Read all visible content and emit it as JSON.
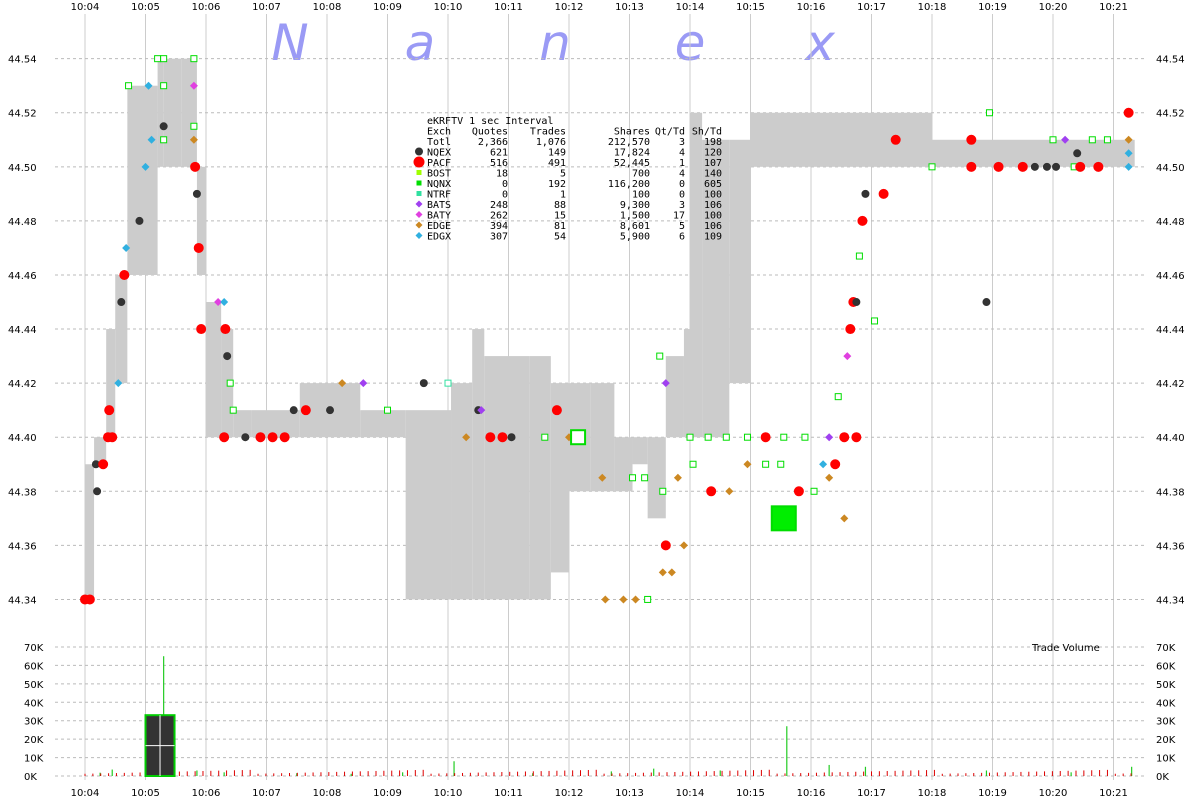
{
  "chart_data": {
    "type": "scatter",
    "brand_letters": [
      "N",
      "a",
      "n",
      "e",
      "x"
    ],
    "time_ticks": [
      "10:04",
      "10:05",
      "10:06",
      "10:07",
      "10:08",
      "10:09",
      "10:10",
      "10:11",
      "10:12",
      "10:13",
      "10:14",
      "10:15",
      "10:16",
      "10:17",
      "10:18",
      "10:19",
      "10:20",
      "10:21"
    ],
    "price_ticks": [
      44.34,
      44.36,
      44.38,
      44.4,
      44.42,
      44.44,
      44.46,
      44.48,
      44.5,
      44.52,
      44.54
    ],
    "price_labels": [
      "44.34",
      "44.36",
      "44.38",
      "44.40",
      "44.42",
      "44.44",
      "44.46",
      "44.48",
      "44.50",
      "44.52",
      "44.54"
    ],
    "ylim": [
      44.325,
      44.558
    ],
    "volume_ticks": [
      0,
      10000,
      20000,
      30000,
      40000,
      50000,
      60000,
      70000
    ],
    "volume_labels": [
      "0K",
      "10K",
      "20K",
      "30K",
      "40K",
      "50K",
      "60K",
      "70K"
    ],
    "volume_ylim": [
      0,
      70000
    ],
    "volume_title": "Trade Volume",
    "legend": {
      "title": "eKRFTV 1 sec Interval",
      "header": [
        "Exch",
        "Quotes",
        "Trades",
        "Shares",
        "Qt/Td",
        "Sh/Td"
      ],
      "rows": [
        {
          "exch": "Totl",
          "quotes": "2,366",
          "trades": "1,076",
          "shares": "212,570",
          "qt_td": "3",
          "sh_td": "198",
          "color": "",
          "marker": "none"
        },
        {
          "exch": "NQEX",
          "quotes": "621",
          "trades": "149",
          "shares": "17,824",
          "qt_td": "4",
          "sh_td": "120",
          "color": "#333333",
          "marker": "circle"
        },
        {
          "exch": "PACF",
          "quotes": "516",
          "trades": "491",
          "shares": "52,445",
          "qt_td": "1",
          "sh_td": "107",
          "color": "#ff0000",
          "marker": "bigcircle"
        },
        {
          "exch": "BOST",
          "quotes": "18",
          "trades": "5",
          "shares": "700",
          "qt_td": "4",
          "sh_td": "140",
          "color": "#a0ff00",
          "marker": "square"
        },
        {
          "exch": "NQNX",
          "quotes": "0",
          "trades": "192",
          "shares": "116,200",
          "qt_td": "0",
          "sh_td": "605",
          "color": "#00dd00",
          "marker": "square"
        },
        {
          "exch": "NTRF",
          "quotes": "0",
          "trades": "1",
          "shares": "100",
          "qt_td": "0",
          "sh_td": "100",
          "color": "#30e0a0",
          "marker": "square"
        },
        {
          "exch": "BATS",
          "quotes": "248",
          "trades": "88",
          "shares": "9,300",
          "qt_td": "3",
          "sh_td": "106",
          "color": "#a040f0",
          "marker": "diamond"
        },
        {
          "exch": "BATY",
          "quotes": "262",
          "trades": "15",
          "shares": "1,500",
          "qt_td": "17",
          "sh_td": "100",
          "color": "#e040e0",
          "marker": "diamond"
        },
        {
          "exch": "EDGE",
          "quotes": "394",
          "trades": "81",
          "shares": "8,601",
          "qt_td": "5",
          "sh_td": "106",
          "color": "#cc8822",
          "marker": "diamond"
        },
        {
          "exch": "EDGX",
          "quotes": "307",
          "trades": "54",
          "shares": "5,900",
          "qt_td": "6",
          "sh_td": "109",
          "color": "#30b0e0",
          "marker": "diamond"
        }
      ]
    },
    "nbbo_band": [
      {
        "t": [
          0.0,
          0.15
        ],
        "low": 44.34,
        "high": 44.39
      },
      {
        "t": [
          0.15,
          0.35
        ],
        "low": 44.39,
        "high": 44.4
      },
      {
        "t": [
          0.35,
          0.5
        ],
        "low": 44.4,
        "high": 44.44
      },
      {
        "t": [
          0.5,
          0.7
        ],
        "low": 44.42,
        "high": 44.46
      },
      {
        "t": [
          0.7,
          1.0
        ],
        "low": 44.46,
        "high": 44.53
      },
      {
        "t": [
          1.0,
          1.2
        ],
        "low": 44.46,
        "high": 44.53
      },
      {
        "t": [
          1.2,
          1.3
        ],
        "low": 44.5,
        "high": 44.54
      },
      {
        "t": [
          1.3,
          1.6
        ],
        "low": 44.5,
        "high": 44.54
      },
      {
        "t": [
          1.6,
          1.85
        ],
        "low": 44.5,
        "high": 44.54
      },
      {
        "t": [
          1.85,
          2.0
        ],
        "low": 44.46,
        "high": 44.5
      },
      {
        "t": [
          2.0,
          2.25
        ],
        "low": 44.4,
        "high": 44.45
      },
      {
        "t": [
          2.25,
          2.45
        ],
        "low": 44.4,
        "high": 44.44
      },
      {
        "t": [
          2.45,
          2.75
        ],
        "low": 44.4,
        "high": 44.41
      },
      {
        "t": [
          2.75,
          3.55
        ],
        "low": 44.4,
        "high": 44.41
      },
      {
        "t": [
          3.55,
          4.55
        ],
        "low": 44.4,
        "high": 44.42
      },
      {
        "t": [
          4.55,
          5.3
        ],
        "low": 44.4,
        "high": 44.41
      },
      {
        "t": [
          5.3,
          6.05
        ],
        "low": 44.34,
        "high": 44.41
      },
      {
        "t": [
          6.05,
          6.4
        ],
        "low": 44.34,
        "high": 44.42
      },
      {
        "t": [
          6.4,
          6.6
        ],
        "low": 44.34,
        "high": 44.44
      },
      {
        "t": [
          6.6,
          7.0
        ],
        "low": 44.34,
        "high": 44.43
      },
      {
        "t": [
          7.0,
          7.35
        ],
        "low": 44.34,
        "high": 44.43
      },
      {
        "t": [
          7.35,
          7.7
        ],
        "low": 44.34,
        "high": 44.43
      },
      {
        "t": [
          7.7,
          8.0
        ],
        "low": 44.35,
        "high": 44.42
      },
      {
        "t": [
          8.0,
          8.35
        ],
        "low": 44.38,
        "high": 44.42
      },
      {
        "t": [
          8.35,
          8.75
        ],
        "low": 44.38,
        "high": 44.42
      },
      {
        "t": [
          8.75,
          9.05
        ],
        "low": 44.38,
        "high": 44.4
      },
      {
        "t": [
          9.05,
          9.3
        ],
        "low": 44.39,
        "high": 44.4
      },
      {
        "t": [
          9.3,
          9.6
        ],
        "low": 44.37,
        "high": 44.4
      },
      {
        "t": [
          9.6,
          9.9
        ],
        "low": 44.4,
        "high": 44.43
      },
      {
        "t": [
          9.9,
          10.0
        ],
        "low": 44.4,
        "high": 44.44
      },
      {
        "t": [
          10.0,
          10.2
        ],
        "low": 44.4,
        "high": 44.52
      },
      {
        "t": [
          10.2,
          10.65
        ],
        "low": 44.4,
        "high": 44.51
      },
      {
        "t": [
          10.65,
          11.0
        ],
        "low": 44.42,
        "high": 44.51
      },
      {
        "t": [
          11.0,
          12.0
        ],
        "low": 44.5,
        "high": 44.52
      },
      {
        "t": [
          12.0,
          13.0
        ],
        "low": 44.5,
        "high": 44.52
      },
      {
        "t": [
          13.0,
          14.0
        ],
        "low": 44.5,
        "high": 44.52
      },
      {
        "t": [
          14.0,
          15.0
        ],
        "low": 44.5,
        "high": 44.51
      },
      {
        "t": [
          15.0,
          16.0
        ],
        "low": 44.5,
        "high": 44.51
      },
      {
        "t": [
          16.0,
          17.35
        ],
        "low": 44.5,
        "high": 44.51
      }
    ],
    "trades": [
      {
        "t": 0.0,
        "p": 44.34,
        "ex": "PACF"
      },
      {
        "t": 0.08,
        "p": 44.34,
        "ex": "PACF"
      },
      {
        "t": 0.18,
        "p": 44.39,
        "ex": "NQEX"
      },
      {
        "t": 0.2,
        "p": 44.38,
        "ex": "NQEX"
      },
      {
        "t": 0.3,
        "p": 44.39,
        "ex": "PACF"
      },
      {
        "t": 0.38,
        "p": 44.4,
        "ex": "PACF"
      },
      {
        "t": 0.4,
        "p": 44.41,
        "ex": "PACF"
      },
      {
        "t": 0.45,
        "p": 44.4,
        "ex": "PACF"
      },
      {
        "t": 0.55,
        "p": 44.42,
        "ex": "EDGX"
      },
      {
        "t": 0.6,
        "p": 44.45,
        "ex": "NQEX"
      },
      {
        "t": 0.65,
        "p": 44.46,
        "ex": "PACF"
      },
      {
        "t": 0.68,
        "p": 44.47,
        "ex": "EDGX"
      },
      {
        "t": 0.72,
        "p": 44.53,
        "ex": "NQNX"
      },
      {
        "t": 0.9,
        "p": 44.48,
        "ex": "NQEX"
      },
      {
        "t": 1.0,
        "p": 44.5,
        "ex": "EDGX"
      },
      {
        "t": 1.05,
        "p": 44.53,
        "ex": "EDGX"
      },
      {
        "t": 1.1,
        "p": 44.51,
        "ex": "EDGX"
      },
      {
        "t": 1.2,
        "p": 44.54,
        "ex": "NQNX"
      },
      {
        "t": 1.3,
        "p": 44.54,
        "ex": "NQNX"
      },
      {
        "t": 1.3,
        "p": 44.515,
        "ex": "NQEX"
      },
      {
        "t": 1.3,
        "p": 44.51,
        "ex": "NQNX"
      },
      {
        "t": 1.3,
        "p": 44.53,
        "ex": "NQNX"
      },
      {
        "t": 1.8,
        "p": 44.54,
        "ex": "NQNX"
      },
      {
        "t": 1.8,
        "p": 44.53,
        "ex": "BATY"
      },
      {
        "t": 1.8,
        "p": 44.515,
        "ex": "NQNX"
      },
      {
        "t": 1.8,
        "p": 44.51,
        "ex": "EDGE"
      },
      {
        "t": 1.82,
        "p": 44.5,
        "ex": "PACF"
      },
      {
        "t": 1.85,
        "p": 44.49,
        "ex": "NQEX"
      },
      {
        "t": 1.88,
        "p": 44.47,
        "ex": "PACF"
      },
      {
        "t": 1.92,
        "p": 44.44,
        "ex": "PACF"
      },
      {
        "t": 2.2,
        "p": 44.45,
        "ex": "BATY"
      },
      {
        "t": 2.3,
        "p": 44.45,
        "ex": "EDGX"
      },
      {
        "t": 2.32,
        "p": 44.44,
        "ex": "PACF"
      },
      {
        "t": 2.35,
        "p": 44.43,
        "ex": "NQEX"
      },
      {
        "t": 2.4,
        "p": 44.42,
        "ex": "NQNX"
      },
      {
        "t": 2.45,
        "p": 44.41,
        "ex": "NQNX"
      },
      {
        "t": 2.3,
        "p": 44.4,
        "ex": "PACF"
      },
      {
        "t": 2.65,
        "p": 44.4,
        "ex": "NQEX"
      },
      {
        "t": 2.9,
        "p": 44.4,
        "ex": "PACF"
      },
      {
        "t": 3.1,
        "p": 44.4,
        "ex": "PACF"
      },
      {
        "t": 3.3,
        "p": 44.4,
        "ex": "PACF"
      },
      {
        "t": 3.45,
        "p": 44.41,
        "ex": "NQEX"
      },
      {
        "t": 3.65,
        "p": 44.41,
        "ex": "PACF"
      },
      {
        "t": 4.05,
        "p": 44.41,
        "ex": "NQEX"
      },
      {
        "t": 4.25,
        "p": 44.42,
        "ex": "EDGE"
      },
      {
        "t": 4.6,
        "p": 44.42,
        "ex": "BATS"
      },
      {
        "t": 5.0,
        "p": 44.41,
        "ex": "NQNX"
      },
      {
        "t": 5.6,
        "p": 44.42,
        "ex": "NQEX"
      },
      {
        "t": 6.0,
        "p": 44.42,
        "ex": "NTRF"
      },
      {
        "t": 6.5,
        "p": 44.41,
        "ex": "NQEX"
      },
      {
        "t": 6.55,
        "p": 44.41,
        "ex": "BATS"
      },
      {
        "t": 6.3,
        "p": 44.4,
        "ex": "EDGE"
      },
      {
        "t": 6.7,
        "p": 44.4,
        "ex": "PACF"
      },
      {
        "t": 6.9,
        "p": 44.4,
        "ex": "PACF"
      },
      {
        "t": 7.05,
        "p": 44.4,
        "ex": "NQEX"
      },
      {
        "t": 7.6,
        "p": 44.4,
        "ex": "NQNX"
      },
      {
        "t": 7.8,
        "p": 44.41,
        "ex": "PACF"
      },
      {
        "t": 8.0,
        "p": 44.4,
        "ex": "EDGE"
      },
      {
        "t": 9.5,
        "p": 44.43,
        "ex": "NQNX"
      },
      {
        "t": 9.6,
        "p": 44.42,
        "ex": "BATS"
      },
      {
        "t": 8.6,
        "p": 44.34,
        "ex": "EDGE"
      },
      {
        "t": 8.9,
        "p": 44.34,
        "ex": "EDGE"
      },
      {
        "t": 9.1,
        "p": 44.34,
        "ex": "EDGE"
      },
      {
        "t": 9.3,
        "p": 44.34,
        "ex": "NQNX"
      },
      {
        "t": 9.55,
        "p": 44.35,
        "ex": "EDGE"
      },
      {
        "t": 9.7,
        "p": 44.35,
        "ex": "EDGE"
      },
      {
        "t": 9.6,
        "p": 44.36,
        "ex": "PACF"
      },
      {
        "t": 9.9,
        "p": 44.36,
        "ex": "EDGE"
      },
      {
        "t": 8.55,
        "p": 44.385,
        "ex": "EDGE"
      },
      {
        "t": 9.05,
        "p": 44.385,
        "ex": "NQNX"
      },
      {
        "t": 9.25,
        "p": 44.385,
        "ex": "NQNX"
      },
      {
        "t": 9.55,
        "p": 44.38,
        "ex": "NQNX"
      },
      {
        "t": 9.8,
        "p": 44.385,
        "ex": "EDGE"
      },
      {
        "t": 10.05,
        "p": 44.39,
        "ex": "NQNX"
      },
      {
        "t": 10.35,
        "p": 44.38,
        "ex": "PACF"
      },
      {
        "t": 10.65,
        "p": 44.38,
        "ex": "EDGE"
      },
      {
        "t": 10.95,
        "p": 44.39,
        "ex": "EDGE"
      },
      {
        "t": 11.25,
        "p": 44.39,
        "ex": "NQNX"
      },
      {
        "t": 11.5,
        "p": 44.39,
        "ex": "NQNX"
      },
      {
        "t": 11.8,
        "p": 44.38,
        "ex": "PACF"
      },
      {
        "t": 12.05,
        "p": 44.38,
        "ex": "NQNX"
      },
      {
        "t": 12.2,
        "p": 44.39,
        "ex": "EDGX"
      },
      {
        "t": 12.3,
        "p": 44.385,
        "ex": "EDGE"
      },
      {
        "t": 12.4,
        "p": 44.39,
        "ex": "PACF"
      },
      {
        "t": 12.55,
        "p": 44.37,
        "ex": "EDGE"
      },
      {
        "t": 10.0,
        "p": 44.4,
        "ex": "NQNX"
      },
      {
        "t": 10.3,
        "p": 44.4,
        "ex": "NQNX"
      },
      {
        "t": 10.6,
        "p": 44.4,
        "ex": "NQNX"
      },
      {
        "t": 10.95,
        "p": 44.4,
        "ex": "NQNX"
      },
      {
        "t": 11.25,
        "p": 44.4,
        "ex": "PACF"
      },
      {
        "t": 11.55,
        "p": 44.4,
        "ex": "NQNX"
      },
      {
        "t": 11.9,
        "p": 44.4,
        "ex": "NQNX"
      },
      {
        "t": 12.3,
        "p": 44.4,
        "ex": "BATS"
      },
      {
        "t": 12.45,
        "p": 44.415,
        "ex": "NQNX"
      },
      {
        "t": 12.55,
        "p": 44.4,
        "ex": "PACF"
      },
      {
        "t": 12.6,
        "p": 44.43,
        "ex": "BATY"
      },
      {
        "t": 12.65,
        "p": 44.44,
        "ex": "PACF"
      },
      {
        "t": 12.7,
        "p": 44.45,
        "ex": "PACF"
      },
      {
        "t": 12.75,
        "p": 44.45,
        "ex": "NQEX"
      },
      {
        "t": 12.8,
        "p": 44.467,
        "ex": "NQNX"
      },
      {
        "t": 12.85,
        "p": 44.48,
        "ex": "PACF"
      },
      {
        "t": 12.9,
        "p": 44.49,
        "ex": "NQEX"
      },
      {
        "t": 12.75,
        "p": 44.4,
        "ex": "PACF"
      },
      {
        "t": 13.05,
        "p": 44.443,
        "ex": "NQNX"
      },
      {
        "t": 13.2,
        "p": 44.49,
        "ex": "PACF"
      },
      {
        "t": 13.4,
        "p": 44.51,
        "ex": "PACF"
      },
      {
        "t": 14.0,
        "p": 44.5,
        "ex": "NQNX"
      },
      {
        "t": 14.65,
        "p": 44.5,
        "ex": "PACF"
      },
      {
        "t": 14.65,
        "p": 44.51,
        "ex": "PACF"
      },
      {
        "t": 14.9,
        "p": 44.45,
        "ex": "NQEX"
      },
      {
        "t": 14.95,
        "p": 44.52,
        "ex": "NQNX"
      },
      {
        "t": 15.1,
        "p": 44.5,
        "ex": "PACF"
      },
      {
        "t": 15.5,
        "p": 44.5,
        "ex": "PACF"
      },
      {
        "t": 15.7,
        "p": 44.5,
        "ex": "NQEX"
      },
      {
        "t": 15.9,
        "p": 44.5,
        "ex": "NQEX"
      },
      {
        "t": 16.05,
        "p": 44.5,
        "ex": "NQEX"
      },
      {
        "t": 16.35,
        "p": 44.5,
        "ex": "NQNX"
      },
      {
        "t": 16.45,
        "p": 44.5,
        "ex": "PACF"
      },
      {
        "t": 16.75,
        "p": 44.5,
        "ex": "PACF"
      },
      {
        "t": 16.0,
        "p": 44.51,
        "ex": "NQNX"
      },
      {
        "t": 16.2,
        "p": 44.51,
        "ex": "BATS"
      },
      {
        "t": 16.4,
        "p": 44.505,
        "ex": "NQEX"
      },
      {
        "t": 16.65,
        "p": 44.51,
        "ex": "NQNX"
      },
      {
        "t": 16.9,
        "p": 44.51,
        "ex": "NQNX"
      },
      {
        "t": 17.25,
        "p": 44.51,
        "ex": "EDGE"
      },
      {
        "t": 17.25,
        "p": 44.52,
        "ex": "PACF"
      },
      {
        "t": 17.25,
        "p": 44.505,
        "ex": "EDGX"
      },
      {
        "t": 17.25,
        "p": 44.5,
        "ex": "EDGX"
      }
    ],
    "big_prints": [
      {
        "t": 8.15,
        "p": 44.4,
        "shares": 9000
      },
      {
        "t": 11.55,
        "p": 44.37,
        "shares": 18000
      }
    ],
    "volume": [
      {
        "t": 0.25,
        "v": 1800
      },
      {
        "t": 0.45,
        "v": 3500
      },
      {
        "t": 1.3,
        "v": 65000
      },
      {
        "t": 1.2,
        "v": 28000
      },
      {
        "t": 1.85,
        "v": 3000
      },
      {
        "t": 2.3,
        "v": 2000
      },
      {
        "t": 3.5,
        "v": 1500
      },
      {
        "t": 4.4,
        "v": 1200
      },
      {
        "t": 5.25,
        "v": 2000
      },
      {
        "t": 6.1,
        "v": 8000
      },
      {
        "t": 7.4,
        "v": 1500
      },
      {
        "t": 8.7,
        "v": 2500
      },
      {
        "t": 9.4,
        "v": 4000
      },
      {
        "t": 10.5,
        "v": 3000
      },
      {
        "t": 11.6,
        "v": 27000
      },
      {
        "t": 12.3,
        "v": 6000
      },
      {
        "t": 12.9,
        "v": 5000
      },
      {
        "t": 14.9,
        "v": 3000
      },
      {
        "t": 16.3,
        "v": 2000
      },
      {
        "t": 17.3,
        "v": 5000
      }
    ],
    "volume_block": {
      "t": [
        1.0,
        1.48
      ],
      "v": [
        0,
        33000
      ]
    }
  }
}
